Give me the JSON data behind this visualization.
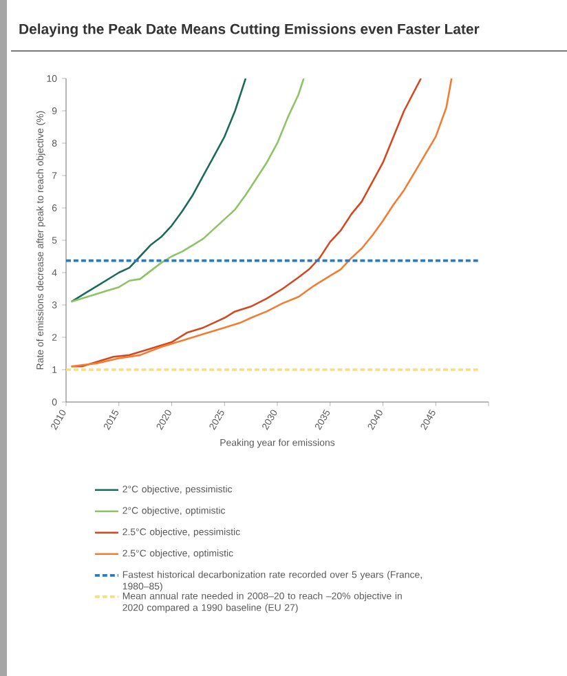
{
  "chart_data": {
    "type": "line",
    "title": "Delaying the Peak Date Means Cutting Emissions even Faster Later",
    "xlabel": "Peaking year for emissions",
    "ylabel": "Rate of emissions decrease after peak to reach objective (%)",
    "xlim": [
      2010,
      2050
    ],
    "ylim": [
      0,
      10
    ],
    "xticks": [
      2010,
      2015,
      2020,
      2025,
      2030,
      2035,
      2040,
      2045,
      {
        "value": 2050,
        "label": null
      }
    ],
    "yticks": [
      0,
      1,
      2,
      3,
      4,
      5,
      6,
      7,
      8,
      9,
      10
    ],
    "grid": false,
    "legend": "bottom",
    "marker": "none",
    "series": [
      {
        "name": "2°C objective, pessimistic",
        "color": "#1a6b5a",
        "line_style": "solid",
        "x": [
          2010.5,
          2012,
          2013,
          2014,
          2015,
          2016,
          2017,
          2018,
          2019,
          2020,
          2021,
          2022,
          2023,
          2024,
          2025,
          2026,
          2027
        ],
        "values": [
          3.1,
          3.4,
          3.6,
          3.8,
          4.0,
          4.15,
          4.5,
          4.85,
          5.1,
          5.45,
          5.9,
          6.4,
          7.0,
          7.6,
          8.2,
          9.0,
          10
        ]
      },
      {
        "name": "2°C objective, optimistic",
        "color": "#8dc464",
        "line_style": "solid",
        "x": [
          2010.5,
          2012,
          2014,
          2015,
          2016,
          2017,
          2018,
          2019,
          2020,
          2021,
          2022,
          2023,
          2024,
          2025,
          2026,
          2027,
          2028,
          2029,
          2030,
          2031,
          2032,
          2032.5
        ],
        "values": [
          3.1,
          3.25,
          3.45,
          3.55,
          3.75,
          3.8,
          4.05,
          4.3,
          4.5,
          4.65,
          4.85,
          5.05,
          5.35,
          5.65,
          5.95,
          6.4,
          6.9,
          7.4,
          8.0,
          8.8,
          9.5,
          10
        ]
      },
      {
        "name": "2.5°C objective, pessimistic",
        "color": "#d4481e",
        "line_style": "solid",
        "x": [
          2010.5,
          2011.5,
          2013,
          2014.5,
          2016,
          2018,
          2020,
          2021.5,
          2023,
          2024,
          2025,
          2026,
          2027.5,
          2029,
          2030.5,
          2032,
          2033,
          2034,
          2035,
          2036,
          2037,
          2038,
          2039,
          2040,
          2041,
          2042,
          2043.6
        ],
        "values": [
          1.1,
          1.1,
          1.25,
          1.4,
          1.45,
          1.65,
          1.85,
          2.15,
          2.3,
          2.45,
          2.6,
          2.8,
          2.95,
          3.2,
          3.5,
          3.85,
          4.1,
          4.45,
          4.95,
          5.3,
          5.8,
          6.2,
          6.8,
          7.4,
          8.2,
          9.0,
          10
        ]
      },
      {
        "name": "2.5°C objective, optimistic",
        "color": "#f47c30",
        "line_style": "solid",
        "x": [
          2010.5,
          2013,
          2015,
          2017,
          2019,
          2021,
          2023,
          2025,
          2026.5,
          2027.5,
          2029,
          2030.5,
          2032,
          2033.5,
          2035,
          2036,
          2037,
          2038,
          2039,
          2040,
          2041,
          2042,
          2043,
          2044,
          2045,
          2046,
          2046.5
        ],
        "values": [
          1.1,
          1.2,
          1.35,
          1.45,
          1.7,
          1.9,
          2.1,
          2.3,
          2.45,
          2.6,
          2.8,
          3.05,
          3.25,
          3.6,
          3.9,
          4.1,
          4.45,
          4.75,
          5.15,
          5.6,
          6.1,
          6.55,
          7.1,
          7.65,
          8.2,
          9.1,
          10
        ]
      },
      {
        "name": "Fastest historical decarbonization rate recorded over 5 years (France, 1980–85)",
        "color": "#2a7abf",
        "line_style": "dashed",
        "x": [
          2010,
          2049
        ],
        "values": [
          4.37,
          4.37
        ]
      },
      {
        "name": "Mean annual rate needed in 2008–20 to reach –20% objective in 2020 compared a 1990 baseline (EU 27)",
        "color": "#fddc7a",
        "line_style": "dashed",
        "x": [
          2010,
          2049
        ],
        "values": [
          1.0,
          1.0
        ]
      }
    ]
  }
}
